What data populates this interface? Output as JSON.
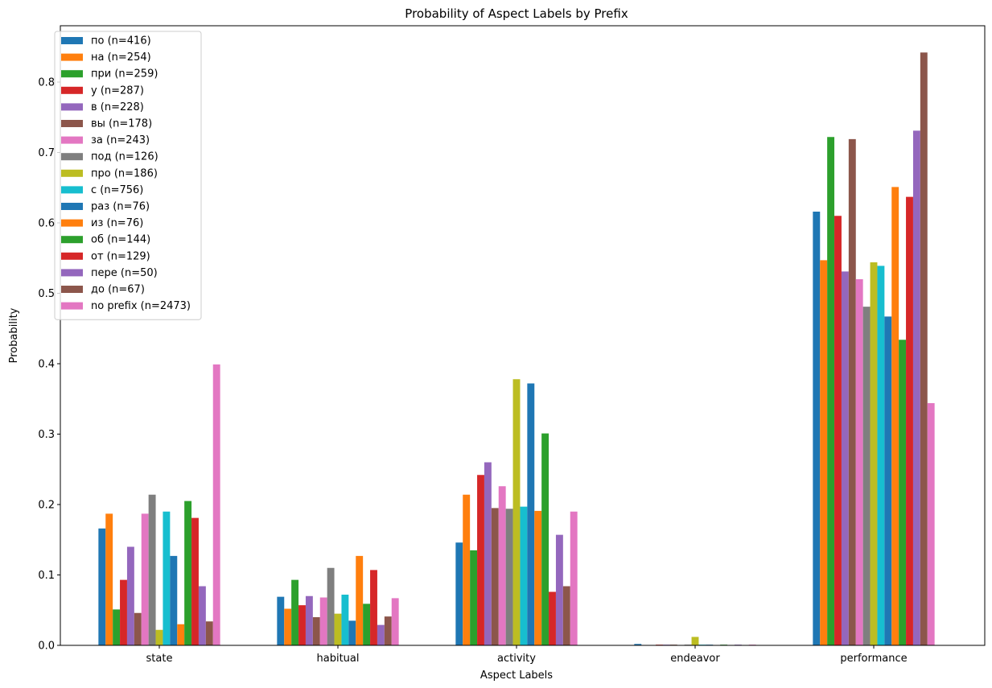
{
  "chart_data": {
    "type": "bar",
    "title": "Probability of Aspect Labels by Prefix",
    "xlabel": "Aspect Labels",
    "ylabel": "Probability",
    "ylim": [
      0,
      0.88
    ],
    "yticks": [
      "0.0",
      "0.1",
      "0.2",
      "0.3",
      "0.4",
      "0.5",
      "0.6",
      "0.7",
      "0.8"
    ],
    "grid": false,
    "legend_position": "upper-left",
    "categories": [
      "state",
      "habitual",
      "activity",
      "endeavor",
      "performance"
    ],
    "series": [
      {
        "name": "по (n=416)",
        "color": "#1f77b4",
        "values": [
          0.166,
          0.069,
          0.146,
          0.002,
          0.616
        ]
      },
      {
        "name": "на (n=254)",
        "color": "#ff7f0e",
        "values": [
          0.187,
          0.052,
          0.214,
          0.0,
          0.547
        ]
      },
      {
        "name": "при (n=259)",
        "color": "#2ca02c",
        "values": [
          0.051,
          0.093,
          0.135,
          0.0,
          0.722
        ]
      },
      {
        "name": "у (n=287)",
        "color": "#d62728",
        "values": [
          0.093,
          0.057,
          0.242,
          0.001,
          0.61
        ]
      },
      {
        "name": "в (n=228)",
        "color": "#9467bd",
        "values": [
          0.14,
          0.07,
          0.26,
          0.001,
          0.531
        ]
      },
      {
        "name": "вы (n=178)",
        "color": "#8c564b",
        "values": [
          0.046,
          0.04,
          0.195,
          0.001,
          0.719
        ]
      },
      {
        "name": "за (n=243)",
        "color": "#e377c2",
        "values": [
          0.187,
          0.068,
          0.226,
          0.0,
          0.52
        ]
      },
      {
        "name": "под (n=126)",
        "color": "#7f7f7f",
        "values": [
          0.214,
          0.11,
          0.194,
          0.001,
          0.481
        ]
      },
      {
        "name": "про (n=186)",
        "color": "#bcbd22",
        "values": [
          0.022,
          0.045,
          0.378,
          0.012,
          0.544
        ]
      },
      {
        "name": "с (n=756)",
        "color": "#17becf",
        "values": [
          0.19,
          0.072,
          0.197,
          0.001,
          0.539
        ]
      },
      {
        "name": "раз (n=76)",
        "color": "#1f77b4",
        "values": [
          0.127,
          0.035,
          0.372,
          0.001,
          0.467
        ]
      },
      {
        "name": "из (n=76)",
        "color": "#ff7f0e",
        "values": [
          0.03,
          0.127,
          0.191,
          0.0,
          0.651
        ]
      },
      {
        "name": "об (n=144)",
        "color": "#2ca02c",
        "values": [
          0.205,
          0.059,
          0.301,
          0.001,
          0.434
        ]
      },
      {
        "name": "от (n=129)",
        "color": "#d62728",
        "values": [
          0.181,
          0.107,
          0.076,
          0.0,
          0.637
        ]
      },
      {
        "name": "пере (n=50)",
        "color": "#9467bd",
        "values": [
          0.084,
          0.029,
          0.157,
          0.001,
          0.731
        ]
      },
      {
        "name": "до (n=67)",
        "color": "#8c564b",
        "values": [
          0.034,
          0.041,
          0.084,
          0.0,
          0.842
        ]
      },
      {
        "name": "no prefix (n=2473)",
        "color": "#e377c2",
        "values": [
          0.399,
          0.067,
          0.19,
          0.001,
          0.344
        ]
      }
    ]
  }
}
